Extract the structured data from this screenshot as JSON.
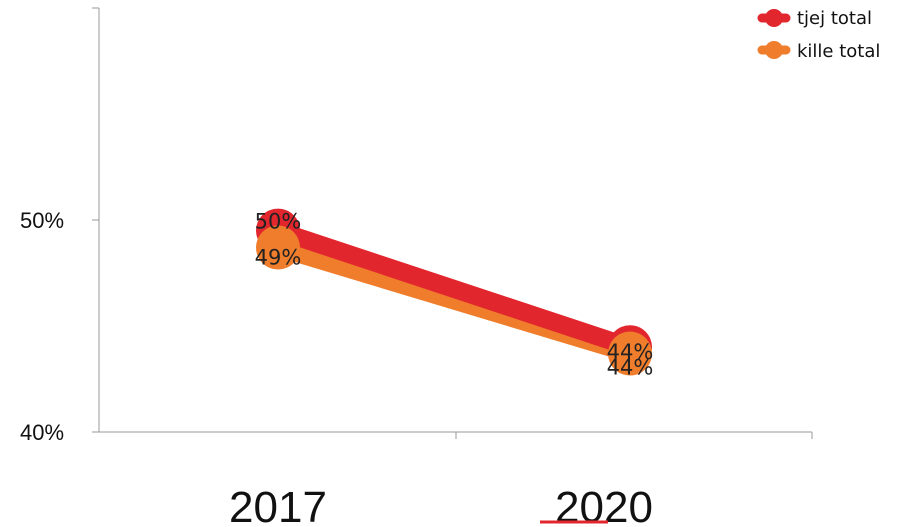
{
  "chart_data": {
    "type": "line",
    "title": "",
    "xlabel": "",
    "ylabel": "",
    "categories": [
      "2017",
      "2020"
    ],
    "ylim": [
      0.4,
      0.5
    ],
    "y_ticks": [
      "50%",
      "40%"
    ],
    "grid": false,
    "legend_position": "top-right",
    "series": [
      {
        "name": "tjej total",
        "color": "#e2262e",
        "values": [
          0.495,
          0.44
        ],
        "labels": [
          "50%",
          "44%"
        ]
      },
      {
        "name": "kille total",
        "color": "#ef7d2c",
        "values": [
          0.487,
          0.437
        ],
        "labels": [
          "49%",
          "44%"
        ]
      }
    ]
  }
}
